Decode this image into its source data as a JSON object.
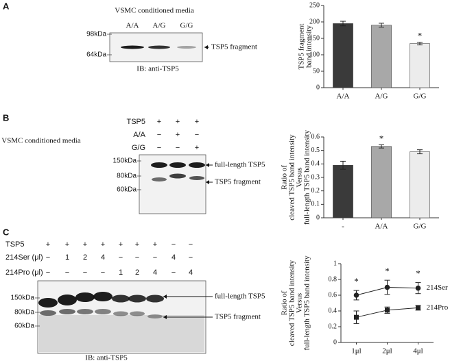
{
  "chart_data": [
    {
      "type": "bar",
      "ylabel": [
        "TSP5 fragment",
        "band intensity"
      ],
      "categories": [
        "A/A",
        "A/G",
        "G/G"
      ],
      "values": [
        195,
        190,
        134
      ],
      "errors": [
        7,
        6,
        4
      ],
      "colors": [
        "#3a3a3a",
        "#a8a8a8",
        "#ececec"
      ],
      "ylim": [
        0,
        250
      ],
      "yticks": [
        0,
        50,
        100,
        150,
        200,
        250
      ],
      "annotations": [
        {
          "text": "*",
          "x": "G/G"
        }
      ]
    },
    {
      "type": "bar",
      "ylabel": [
        "Ratio of",
        "cleaved TSP5 band intensity",
        "Versus",
        "full-length TSP5 band intensity"
      ],
      "categories": [
        "-",
        "A/A",
        "G/G"
      ],
      "values": [
        0.39,
        0.53,
        0.49
      ],
      "errors": [
        0.03,
        0.012,
        0.015
      ],
      "colors": [
        "#3a3a3a",
        "#a8a8a8",
        "#ececec"
      ],
      "ylim": [
        0,
        0.6
      ],
      "yticks": [
        0,
        0.1,
        0.2,
        0.3,
        0.4,
        0.5,
        0.6
      ],
      "annotations": [
        {
          "text": "*",
          "x": "A/A"
        }
      ]
    },
    {
      "type": "line",
      "ylabel": [
        "Ratio of",
        "cleaved TSP5 band intensity",
        "Versus",
        "full-length TSP5 band intensity"
      ],
      "categories": [
        "1μl",
        "2μl",
        "4μl"
      ],
      "series": [
        {
          "name": "214Ser",
          "color": "#222222",
          "marker": "circle",
          "values": [
            0.6,
            0.7,
            0.69
          ],
          "errors": [
            0.06,
            0.09,
            0.07
          ]
        },
        {
          "name": "214Pro",
          "color": "#222222",
          "marker": "square",
          "values": [
            0.32,
            0.41,
            0.44
          ],
          "errors": [
            0.08,
            0.04,
            0.03
          ]
        }
      ],
      "ylim": [
        0,
        1
      ],
      "yticks": [
        0,
        0.2,
        0.4,
        0.6,
        0.8,
        1
      ],
      "annotations": [
        {
          "text": "*",
          "x": "1μl"
        },
        {
          "text": "*",
          "x": "2μl"
        },
        {
          "text": "*",
          "x": "4μl"
        }
      ]
    }
  ],
  "blots": [
    {
      "panel": "A",
      "title": "VSMC conditioned media",
      "lanes": [
        "A/A",
        "A/G",
        "G/G"
      ],
      "markers": [
        "98kDa",
        "64kDa"
      ],
      "arrows": [
        "TSP5 fragment"
      ],
      "footer": "IB: anti-TSP5"
    },
    {
      "panel": "B",
      "side_label": "VSMC conditioned media",
      "rows": [
        {
          "label": "TSP5",
          "cells": [
            "+",
            "+",
            "+"
          ]
        },
        {
          "label": "A/A",
          "cells": [
            "−",
            "+",
            "−"
          ]
        },
        {
          "label": "G/G",
          "cells": [
            "−",
            "−",
            "+"
          ]
        }
      ],
      "markers": [
        "150kDa",
        "80kDa",
        "60kDa"
      ],
      "arrows": [
        "full-length TSP5",
        "TSP5 fragment"
      ]
    },
    {
      "panel": "C",
      "rows": [
        {
          "label": "TSP5",
          "cells": [
            "+",
            "+",
            "+",
            "+",
            "+",
            "+",
            "+",
            "−",
            "−"
          ]
        },
        {
          "label": "214Ser (μl)",
          "cells": [
            "−",
            "1",
            "2",
            "4",
            "−",
            "−",
            "−",
            "4",
            "−"
          ]
        },
        {
          "label": "214Pro (μl)",
          "cells": [
            "−",
            "−",
            "−",
            "−",
            "1",
            "2",
            "4",
            "−",
            "4"
          ]
        }
      ],
      "markers": [
        "150kDa",
        "80kDa",
        "60kDa"
      ],
      "arrows": [
        "full-length TSP5",
        "TSP5 fragment"
      ],
      "footer": "IB: anti-TSP5"
    }
  ]
}
